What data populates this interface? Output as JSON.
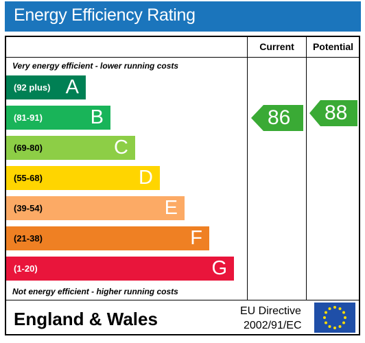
{
  "title": "Energy Efficiency Rating",
  "columns": {
    "current": "Current",
    "potential": "Potential"
  },
  "notes": {
    "top": "Very energy efficient - lower running costs",
    "bottom": "Not energy efficient - higher running costs"
  },
  "bands": [
    {
      "range": "(92 plus)",
      "letter": "A",
      "color": "#008054"
    },
    {
      "range": "(81-91)",
      "letter": "B",
      "color": "#19b459"
    },
    {
      "range": "(69-80)",
      "letter": "C",
      "color": "#8dce46"
    },
    {
      "range": "(55-68)",
      "letter": "D",
      "color": "#ffd500"
    },
    {
      "range": "(39-54)",
      "letter": "E",
      "color": "#fcaa65"
    },
    {
      "range": "(21-38)",
      "letter": "F",
      "color": "#ef8023"
    },
    {
      "range": "(1-20)",
      "letter": "G",
      "color": "#e9153b"
    }
  ],
  "current": {
    "value": "86",
    "band": "B",
    "color": "#3aaa35"
  },
  "potential": {
    "value": "88",
    "band": "B",
    "color": "#3aaa35"
  },
  "footer": {
    "region": "England & Wales",
    "directive_line1": "EU Directive",
    "directive_line2": "2002/91/EC",
    "flag_icon": "eu-flag-icon"
  }
}
